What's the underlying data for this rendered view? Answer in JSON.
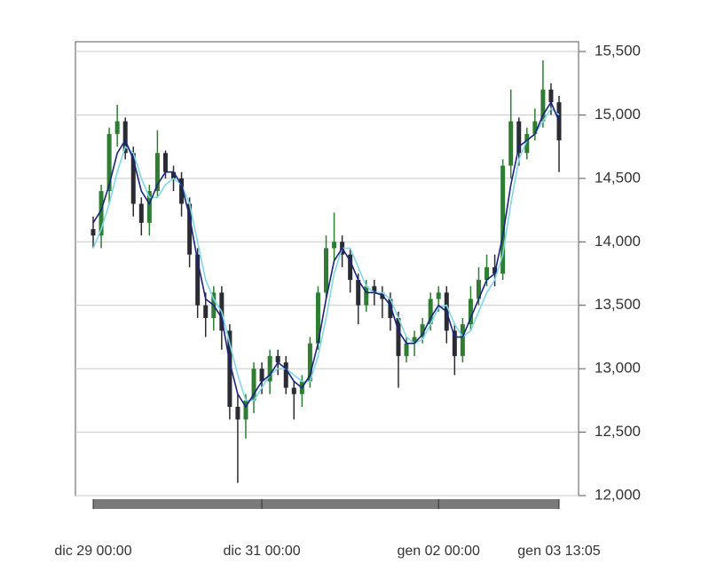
{
  "chart_data": {
    "type": "candlestick",
    "categories": [
      "dic 29 00:00",
      null,
      null,
      null,
      null,
      null,
      null,
      null,
      null,
      null,
      null,
      null,
      null,
      null,
      null,
      null,
      null,
      null,
      null,
      null,
      null,
      "dic 31 00:00",
      null,
      null,
      null,
      null,
      null,
      null,
      null,
      null,
      null,
      null,
      null,
      null,
      null,
      null,
      null,
      null,
      null,
      null,
      null,
      null,
      null,
      "gen 02 00:00",
      null,
      null,
      null,
      null,
      null,
      null,
      null,
      null,
      null,
      null,
      null,
      null,
      null,
      null,
      "gen 03 13:05"
    ],
    "open": [
      14100,
      14050,
      14400,
      14850,
      14950,
      14700,
      14300,
      14150,
      14400,
      14700,
      14550,
      14500,
      14300,
      13900,
      13500,
      13400,
      13600,
      13300,
      12700,
      12600,
      12750,
      13000,
      12900,
      13100,
      13050,
      12850,
      12800,
      12900,
      13200,
      13600,
      13950,
      14000,
      13900,
      13700,
      13500,
      13650,
      13600,
      13550,
      13400,
      13100,
      13200,
      13250,
      13350,
      13550,
      13600,
      13300,
      13100,
      13350,
      13550,
      13700,
      13800,
      13750,
      14600,
      14950,
      14700,
      14850,
      14950,
      15200,
      15100
    ],
    "high": [
      14200,
      14450,
      14900,
      15080,
      14980,
      14750,
      14350,
      14450,
      14880,
      14720,
      14600,
      14550,
      14350,
      13950,
      13600,
      13650,
      13650,
      13350,
      12800,
      12800,
      13050,
      13050,
      13150,
      13150,
      13100,
      12900,
      12950,
      13250,
      13650,
      14050,
      14230,
      14050,
      13950,
      13750,
      13700,
      13700,
      13650,
      13600,
      13450,
      13250,
      13300,
      13400,
      13600,
      13650,
      13650,
      13350,
      13400,
      13650,
      13800,
      13900,
      13900,
      14650,
      15200,
      14980,
      14900,
      15050,
      15430,
      15250,
      15150
    ],
    "low": [
      13950,
      13950,
      14300,
      14750,
      14650,
      14200,
      14050,
      14050,
      14350,
      14500,
      14400,
      14200,
      13800,
      13400,
      13250,
      13300,
      13150,
      12600,
      12100,
      12450,
      12650,
      12800,
      12800,
      12950,
      12800,
      12600,
      12700,
      12850,
      13150,
      13550,
      13850,
      13800,
      13600,
      13350,
      13450,
      13500,
      13400,
      13300,
      12850,
      13050,
      13100,
      13200,
      13300,
      13450,
      13200,
      12950,
      13050,
      13300,
      13500,
      13650,
      13650,
      13700,
      14500,
      14600,
      14650,
      14800,
      14900,
      15000,
      14550
    ],
    "close": [
      14050,
      14400,
      14850,
      14950,
      14700,
      14300,
      14150,
      14400,
      14700,
      14550,
      14500,
      14300,
      13900,
      13500,
      13400,
      13600,
      13300,
      12700,
      12600,
      12750,
      13000,
      12900,
      13100,
      13050,
      12850,
      12800,
      12900,
      13200,
      13600,
      13950,
      14000,
      13900,
      13700,
      13500,
      13650,
      13600,
      13550,
      13400,
      13100,
      13200,
      13250,
      13350,
      13550,
      13600,
      13300,
      13100,
      13350,
      13550,
      13700,
      13800,
      13750,
      14600,
      14950,
      14700,
      14850,
      14950,
      15200,
      15100,
      14800
    ],
    "up_color": "#2e7d32",
    "down_color": "#2b2b33",
    "moving_averages": [
      {
        "color": "#7fd8e8",
        "values": [
          13950,
          14100,
          14300,
          14550,
          14750,
          14700,
          14500,
          14350,
          14350,
          14450,
          14500,
          14450,
          14300,
          14000,
          13700,
          13550,
          13450,
          13200,
          12950,
          12750,
          12750,
          12850,
          12950,
          13000,
          13000,
          12950,
          12900,
          12900,
          13100,
          13400,
          13750,
          13950,
          13950,
          13800,
          13650,
          13600,
          13600,
          13550,
          13400,
          13250,
          13200,
          13230,
          13350,
          13480,
          13500,
          13350,
          13250,
          13300,
          13450,
          13600,
          13700,
          13900,
          14300,
          14650,
          14800,
          14850,
          14950,
          15050,
          15000
        ]
      },
      {
        "color": "#1a237e",
        "values": [
          14150,
          14250,
          14450,
          14700,
          14800,
          14650,
          14400,
          14300,
          14450,
          14550,
          14550,
          14450,
          14200,
          13850,
          13550,
          13500,
          13400,
          13050,
          12800,
          12700,
          12800,
          12900,
          12950,
          13050,
          13000,
          12900,
          12850,
          12950,
          13200,
          13550,
          13850,
          13950,
          13850,
          13700,
          13600,
          13600,
          13580,
          13500,
          13300,
          13200,
          13200,
          13270,
          13400,
          13500,
          13450,
          13250,
          13250,
          13400,
          13550,
          13700,
          13750,
          14050,
          14450,
          14750,
          14800,
          14850,
          15000,
          15100,
          14950
        ]
      }
    ],
    "ylim": [
      12000,
      15500
    ],
    "yticks": [
      {
        "value": 12000,
        "label": "12,000"
      },
      {
        "value": 12500,
        "label": "12,500"
      },
      {
        "value": 13000,
        "label": "13,000"
      },
      {
        "value": 13500,
        "label": "13,500"
      },
      {
        "value": 14000,
        "label": "14,000"
      },
      {
        "value": 14500,
        "label": "14,500"
      },
      {
        "value": 15000,
        "label": "15,000"
      },
      {
        "value": 15500,
        "label": "15,500"
      }
    ],
    "grid": true,
    "y_axis_side": "right"
  }
}
